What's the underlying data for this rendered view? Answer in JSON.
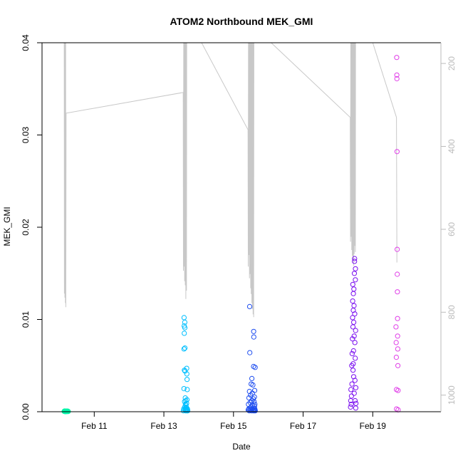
{
  "chart_data": {
    "type": "scatter",
    "title": "ATOM2 Northbound MEK_GMI",
    "xlabel": "Date",
    "ylabel": "MEK_GMI",
    "xlim": [
      "2024-02-09T12:00",
      "2024-02-20T23:00"
    ],
    "ylim": [
      0,
      0.04
    ],
    "y2lim": [
      1040,
      150
    ],
    "x_ticks": [
      {
        "x": "2024-02-11T00:00",
        "label": "Feb 11"
      },
      {
        "x": "2024-02-13T00:00",
        "label": "Feb 13"
      },
      {
        "x": "2024-02-15T00:00",
        "label": "Feb 15"
      },
      {
        "x": "2024-02-17T00:00",
        "label": "Feb 17"
      },
      {
        "x": "2024-02-19T00:00",
        "label": "Feb 19"
      }
    ],
    "y_ticks": [
      {
        "y": 0,
        "label": "0.00"
      },
      {
        "y": 0.01,
        "label": "0.01"
      },
      {
        "y": 0.02,
        "label": "0.02"
      },
      {
        "y": 0.03,
        "label": "0.03"
      },
      {
        "y": 0.04,
        "label": "0.04"
      }
    ],
    "y2_ticks": [
      {
        "y": 200,
        "label": "200"
      },
      {
        "y": 400,
        "label": "400"
      },
      {
        "y": 600,
        "label": "600"
      },
      {
        "y": 800,
        "label": "800"
      },
      {
        "y": 1000,
        "label": "1000"
      }
    ],
    "grid": false,
    "legend": "none",
    "colors": {
      "axis": "#000000",
      "y2_axis": "#bbbbbb",
      "altitude_line": "#c8c8c8"
    },
    "altitude_trace": [
      {
        "x": "2024-02-10T03:15",
        "y": 8
      },
      {
        "x": "2024-02-10T03:25",
        "y": 755
      },
      {
        "x": "2024-02-10T03:35",
        "y": 8
      },
      {
        "x": "2024-02-10T03:45",
        "y": 765
      },
      {
        "x": "2024-02-10T03:55",
        "y": 8
      },
      {
        "x": "2024-02-10T04:05",
        "y": 778
      },
      {
        "x": "2024-02-10T04:15",
        "y": 8
      },
      {
        "x": "2024-02-10T04:25",
        "y": 788
      },
      {
        "x": "2024-02-10T04:35",
        "y": 320
      },
      {
        "x": "2024-02-13T13:20",
        "y": 270
      },
      {
        "x": "2024-02-13T13:30",
        "y": 700
      },
      {
        "x": "2024-02-13T13:42",
        "y": 8
      },
      {
        "x": "2024-02-13T13:55",
        "y": 690
      },
      {
        "x": "2024-02-13T14:08",
        "y": 8
      },
      {
        "x": "2024-02-13T14:20",
        "y": 725
      },
      {
        "x": "2024-02-13T14:32",
        "y": 8
      },
      {
        "x": "2024-02-13T14:45",
        "y": 735
      },
      {
        "x": "2024-02-13T14:57",
        "y": 8
      },
      {
        "x": "2024-02-13T15:10",
        "y": 768
      },
      {
        "x": "2024-02-13T15:22",
        "y": 8
      },
      {
        "x": "2024-02-13T15:35",
        "y": 748
      },
      {
        "x": "2024-02-13T15:48",
        "y": 8
      },
      {
        "x": "2024-02-14T02:00",
        "y": 150
      },
      {
        "x": "2024-02-15T10:00",
        "y": 360
      },
      {
        "x": "2024-02-15T10:10",
        "y": 690
      },
      {
        "x": "2024-02-15T10:22",
        "y": 8
      },
      {
        "x": "2024-02-15T10:35",
        "y": 662
      },
      {
        "x": "2024-02-15T10:47",
        "y": 8
      },
      {
        "x": "2024-02-15T11:00",
        "y": 718
      },
      {
        "x": "2024-02-15T11:12",
        "y": 8
      },
      {
        "x": "2024-02-15T11:25",
        "y": 708
      },
      {
        "x": "2024-02-15T11:37",
        "y": 8
      },
      {
        "x": "2024-02-15T11:50",
        "y": 742
      },
      {
        "x": "2024-02-15T12:02",
        "y": 8
      },
      {
        "x": "2024-02-15T12:15",
        "y": 756
      },
      {
        "x": "2024-02-15T12:27",
        "y": 8
      },
      {
        "x": "2024-02-15T12:40",
        "y": 778
      },
      {
        "x": "2024-02-15T12:52",
        "y": 8
      },
      {
        "x": "2024-02-15T13:05",
        "y": 792
      },
      {
        "x": "2024-02-15T13:17",
        "y": 8
      },
      {
        "x": "2024-02-15T13:30",
        "y": 805
      },
      {
        "x": "2024-02-15T13:42",
        "y": 8
      },
      {
        "x": "2024-02-15T13:55",
        "y": 812
      },
      {
        "x": "2024-02-15T14:05",
        "y": 8
      },
      {
        "x": "2024-02-16T02:00",
        "y": 150
      },
      {
        "x": "2024-02-18T08:30",
        "y": 330
      },
      {
        "x": "2024-02-18T08:40",
        "y": 630
      },
      {
        "x": "2024-02-18T08:52",
        "y": 8
      },
      {
        "x": "2024-02-18T09:05",
        "y": 618
      },
      {
        "x": "2024-02-18T09:17",
        "y": 8
      },
      {
        "x": "2024-02-18T09:30",
        "y": 650
      },
      {
        "x": "2024-02-18T09:42",
        "y": 8
      },
      {
        "x": "2024-02-18T09:55",
        "y": 664
      },
      {
        "x": "2024-02-18T10:07",
        "y": 8
      },
      {
        "x": "2024-02-18T10:20",
        "y": 676
      },
      {
        "x": "2024-02-18T10:32",
        "y": 8
      },
      {
        "x": "2024-02-18T10:45",
        "y": 688
      },
      {
        "x": "2024-02-18T10:57",
        "y": 8
      },
      {
        "x": "2024-02-18T11:10",
        "y": 660
      },
      {
        "x": "2024-02-18T11:22",
        "y": 8
      },
      {
        "x": "2024-02-18T11:35",
        "y": 640
      },
      {
        "x": "2024-02-18T11:47",
        "y": 8
      },
      {
        "x": "2024-02-18T12:00",
        "y": 655
      },
      {
        "x": "2024-02-18T12:10",
        "y": 8
      },
      {
        "x": "2024-02-19T00:00",
        "y": 150
      },
      {
        "x": "2024-02-19T16:20",
        "y": 330
      },
      {
        "x": "2024-02-19T16:40",
        "y": 680
      }
    ],
    "series": [
      {
        "color": "#00f5a8",
        "points": [
          {
            "x": "2024-02-10T03:15",
            "y": 5e-05
          },
          {
            "x": "2024-02-10T03:25",
            "y": 2e-05
          },
          {
            "x": "2024-02-10T03:35",
            "y": 8e-05
          },
          {
            "x": "2024-02-10T03:45",
            "y": 3e-05
          },
          {
            "x": "2024-02-10T03:55",
            "y": 6e-05
          },
          {
            "x": "2024-02-10T04:05",
            "y": 1e-05
          },
          {
            "x": "2024-02-10T04:15",
            "y": 4e-05
          },
          {
            "x": "2024-02-10T04:25",
            "y": 7e-05
          },
          {
            "x": "2024-02-10T04:35",
            "y": 2e-05
          },
          {
            "x": "2024-02-10T04:45",
            "y": 5e-05
          },
          {
            "x": "2024-02-10T04:55",
            "y": 3e-05
          },
          {
            "x": "2024-02-10T05:05",
            "y": 6e-05
          },
          {
            "x": "2024-02-10T05:15",
            "y": 2e-05
          },
          {
            "x": "2024-02-10T05:25",
            "y": 4e-05
          },
          {
            "x": "2024-02-10T05:35",
            "y": 7e-05
          },
          {
            "x": "2024-02-10T05:45",
            "y": 3e-05
          },
          {
            "x": "2024-02-10T05:55",
            "y": 5e-05
          },
          {
            "x": "2024-02-10T06:05",
            "y": 2e-05
          }
        ]
      },
      {
        "color": "#00bfff",
        "points": [
          {
            "x": "2024-02-13T13:30",
            "y": 0.0001
          },
          {
            "x": "2024-02-13T13:40",
            "y": 0.0003
          },
          {
            "x": "2024-02-13T13:50",
            "y": 0.0025
          },
          {
            "x": "2024-02-13T13:52",
            "y": 0.0068
          },
          {
            "x": "2024-02-13T13:55",
            "y": 0.0102
          },
          {
            "x": "2024-02-13T14:00",
            "y": 0.0093
          },
          {
            "x": "2024-02-13T14:05",
            "y": 0.0085
          },
          {
            "x": "2024-02-13T14:10",
            "y": 0.0045
          },
          {
            "x": "2024-02-13T14:15",
            "y": 0.0011
          },
          {
            "x": "2024-02-13T14:20",
            "y": 0.0005
          },
          {
            "x": "2024-02-13T14:25",
            "y": 0.0097
          },
          {
            "x": "2024-02-13T14:28",
            "y": 0.0091
          },
          {
            "x": "2024-02-13T14:32",
            "y": 0.0069
          },
          {
            "x": "2024-02-13T14:36",
            "y": 0.0044
          },
          {
            "x": "2024-02-13T14:40",
            "y": 0.0002
          },
          {
            "x": "2024-02-13T14:45",
            "y": 0.0015
          },
          {
            "x": "2024-02-13T14:50",
            "y": 0.0008
          },
          {
            "x": "2024-02-13T14:55",
            "y": 0.0001
          },
          {
            "x": "2024-02-13T15:00",
            "y": 0.0004
          },
          {
            "x": "2024-02-13T15:05",
            "y": 0.0012
          },
          {
            "x": "2024-02-13T15:10",
            "y": 0.0002
          },
          {
            "x": "2024-02-13T15:15",
            "y": 0.0007
          },
          {
            "x": "2024-02-13T15:20",
            "y": 0.0003
          },
          {
            "x": "2024-02-13T15:25",
            "y": 0.0001
          },
          {
            "x": "2024-02-13T15:30",
            "y": 0.0005
          },
          {
            "x": "2024-02-13T15:35",
            "y": 0.0002
          },
          {
            "x": "2024-02-13T15:40",
            "y": 0.0009
          },
          {
            "x": "2024-02-13T15:45",
            "y": 0.0047
          },
          {
            "x": "2024-02-13T15:50",
            "y": 0.0041
          },
          {
            "x": "2024-02-13T15:55",
            "y": 0.0013
          },
          {
            "x": "2024-02-13T16:00",
            "y": 0.0035
          },
          {
            "x": "2024-02-13T16:05",
            "y": 0.0024
          },
          {
            "x": "2024-02-13T16:10",
            "y": 0.0001
          },
          {
            "x": "2024-02-13T16:15",
            "y": 0.0003
          },
          {
            "x": "2024-02-13T16:20",
            "y": 0.0002
          },
          {
            "x": "2024-02-13T16:25",
            "y": 0.0001
          }
        ]
      },
      {
        "color": "#1f4ef0",
        "points": [
          {
            "x": "2024-02-15T10:10",
            "y": 0.0002
          },
          {
            "x": "2024-02-15T10:20",
            "y": 0.0008
          },
          {
            "x": "2024-02-15T10:30",
            "y": 0.0003
          },
          {
            "x": "2024-02-15T10:40",
            "y": 0.0015
          },
          {
            "x": "2024-02-15T10:50",
            "y": 0.0001
          },
          {
            "x": "2024-02-15T11:00",
            "y": 0.0022
          },
          {
            "x": "2024-02-15T11:10",
            "y": 0.0114
          },
          {
            "x": "2024-02-15T11:15",
            "y": 0.0064
          },
          {
            "x": "2024-02-15T11:20",
            "y": 0.0004
          },
          {
            "x": "2024-02-15T11:30",
            "y": 0.001
          },
          {
            "x": "2024-02-15T11:40",
            "y": 0.0002
          },
          {
            "x": "2024-02-15T11:50",
            "y": 0.0018
          },
          {
            "x": "2024-02-15T12:00",
            "y": 0.0005
          },
          {
            "x": "2024-02-15T12:10",
            "y": 0.003
          },
          {
            "x": "2024-02-15T12:20",
            "y": 0.0001
          },
          {
            "x": "2024-02-15T12:30",
            "y": 0.0012
          },
          {
            "x": "2024-02-15T12:40",
            "y": 0.0036
          },
          {
            "x": "2024-02-15T12:50",
            "y": 0.0003
          },
          {
            "x": "2024-02-15T13:00",
            "y": 0.002
          },
          {
            "x": "2024-02-15T13:10",
            "y": 0.0007
          },
          {
            "x": "2024-02-15T13:20",
            "y": 0.0029
          },
          {
            "x": "2024-02-15T13:30",
            "y": 0.0001
          },
          {
            "x": "2024-02-15T13:40",
            "y": 0.0014
          },
          {
            "x": "2024-02-15T13:50",
            "y": 0.0049
          },
          {
            "x": "2024-02-15T13:55",
            "y": 0.0087
          },
          {
            "x": "2024-02-15T14:00",
            "y": 0.0081
          },
          {
            "x": "2024-02-15T14:05",
            "y": 0.0002
          },
          {
            "x": "2024-02-15T14:10",
            "y": 0.0011
          },
          {
            "x": "2024-02-15T14:15",
            "y": 0.0004
          },
          {
            "x": "2024-02-15T14:20",
            "y": 0.0001
          },
          {
            "x": "2024-02-15T14:25",
            "y": 0.0016
          },
          {
            "x": "2024-02-15T14:30",
            "y": 0.0006
          },
          {
            "x": "2024-02-15T14:35",
            "y": 0.0023
          },
          {
            "x": "2024-02-15T14:40",
            "y": 0.0003
          },
          {
            "x": "2024-02-15T14:45",
            "y": 0.0008
          },
          {
            "x": "2024-02-15T14:50",
            "y": 0.0002
          },
          {
            "x": "2024-02-15T14:55",
            "y": 0.0048
          },
          {
            "x": "2024-02-15T15:00",
            "y": 0.0001
          }
        ]
      },
      {
        "color": "#7a0ef0",
        "points": [
          {
            "x": "2024-02-18T08:40",
            "y": 0.0005
          },
          {
            "x": "2024-02-18T08:50",
            "y": 0.0012
          },
          {
            "x": "2024-02-18T09:00",
            "y": 0.0024
          },
          {
            "x": "2024-02-18T09:10",
            "y": 0.0008
          },
          {
            "x": "2024-02-18T09:20",
            "y": 0.0017
          },
          {
            "x": "2024-02-18T09:30",
            "y": 0.005
          },
          {
            "x": "2024-02-18T09:40",
            "y": 0.003
          },
          {
            "x": "2024-02-18T09:50",
            "y": 0.0063
          },
          {
            "x": "2024-02-18T10:00",
            "y": 0.0079
          },
          {
            "x": "2024-02-18T10:05",
            "y": 0.0102
          },
          {
            "x": "2024-02-18T10:10",
            "y": 0.012
          },
          {
            "x": "2024-02-18T10:15",
            "y": 0.0138
          },
          {
            "x": "2024-02-18T10:20",
            "y": 0.0092
          },
          {
            "x": "2024-02-18T10:25",
            "y": 0.0045
          },
          {
            "x": "2024-02-18T10:30",
            "y": 0.0052
          },
          {
            "x": "2024-02-18T10:35",
            "y": 0.011
          },
          {
            "x": "2024-02-18T10:40",
            "y": 0.0128
          },
          {
            "x": "2024-02-18T10:45",
            "y": 0.0066
          },
          {
            "x": "2024-02-18T10:50",
            "y": 0.0038
          },
          {
            "x": "2024-02-18T10:55",
            "y": 0.0097
          },
          {
            "x": "2024-02-18T11:00",
            "y": 0.0133
          },
          {
            "x": "2024-02-18T11:05",
            "y": 0.0115
          },
          {
            "x": "2024-02-18T11:10",
            "y": 0.0082
          },
          {
            "x": "2024-02-18T11:15",
            "y": 0.002
          },
          {
            "x": "2024-02-18T11:20",
            "y": 0.015
          },
          {
            "x": "2024-02-18T11:25",
            "y": 0.0163
          },
          {
            "x": "2024-02-18T11:30",
            "y": 0.0166
          },
          {
            "x": "2024-02-18T11:35",
            "y": 0.0106
          },
          {
            "x": "2024-02-18T11:40",
            "y": 0.0075
          },
          {
            "x": "2024-02-18T11:45",
            "y": 0.0034
          },
          {
            "x": "2024-02-18T11:50",
            "y": 0.0012
          },
          {
            "x": "2024-02-18T11:55",
            "y": 0.0058
          },
          {
            "x": "2024-02-18T12:00",
            "y": 0.0143
          },
          {
            "x": "2024-02-18T12:05",
            "y": 0.0155
          },
          {
            "x": "2024-02-18T12:10",
            "y": 0.0088
          },
          {
            "x": "2024-02-18T12:15",
            "y": 0.0004
          },
          {
            "x": "2024-02-18T12:20",
            "y": 0.0026
          },
          {
            "x": "2024-02-18T12:25",
            "y": 0.0009
          }
        ]
      },
      {
        "color": "#e040e8",
        "points": [
          {
            "x": "2024-02-19T16:00",
            "y": 0.0092
          },
          {
            "x": "2024-02-19T16:10",
            "y": 0.0075
          },
          {
            "x": "2024-02-19T16:15",
            "y": 0.0059
          },
          {
            "x": "2024-02-19T16:20",
            "y": 0.0024
          },
          {
            "x": "2024-02-19T16:25",
            "y": 0.0003
          },
          {
            "x": "2024-02-19T16:30",
            "y": 0.0384
          },
          {
            "x": "2024-02-19T16:35",
            "y": 0.0365
          },
          {
            "x": "2024-02-19T16:40",
            "y": 0.0361
          },
          {
            "x": "2024-02-19T16:45",
            "y": 0.0282
          },
          {
            "x": "2024-02-19T16:50",
            "y": 0.0176
          },
          {
            "x": "2024-02-19T16:55",
            "y": 0.0149
          },
          {
            "x": "2024-02-19T17:00",
            "y": 0.013
          },
          {
            "x": "2024-02-19T17:05",
            "y": 0.0101
          },
          {
            "x": "2024-02-19T17:10",
            "y": 0.0082
          },
          {
            "x": "2024-02-19T17:15",
            "y": 0.0068
          },
          {
            "x": "2024-02-19T17:20",
            "y": 0.005
          },
          {
            "x": "2024-02-19T17:25",
            "y": 0.0023
          },
          {
            "x": "2024-02-19T17:30",
            "y": 0.0002
          }
        ]
      }
    ]
  }
}
